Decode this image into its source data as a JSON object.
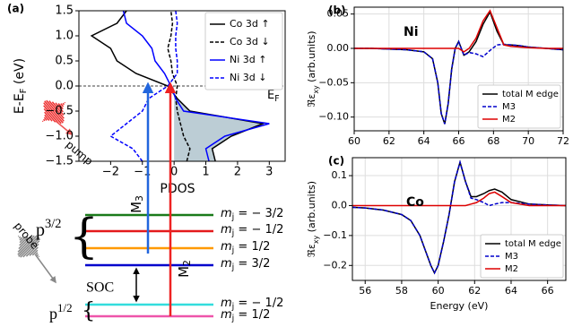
{
  "chart_data": [
    {
      "type": "line",
      "orientation": "horizontal",
      "panel_label": "(a)",
      "xlabel": "PDOS",
      "ylabel": {
        "main": "E-E",
        "sub": "F",
        "unit": " (eV)"
      },
      "y": [
        -1.5,
        -1.25,
        -1,
        -0.75,
        -0.5,
        -0.25,
        0,
        0.25,
        0.5,
        0.75,
        1,
        1.25,
        1.5
      ],
      "series": [
        {
          "name": "Co 3d ↑",
          "color": "#000000",
          "dash": false,
          "fill": "#bccdd5",
          "values": [
            1.3,
            1.2,
            1.8,
            2.8,
            0.5,
            0.1,
            -0.2,
            -1.2,
            -1.8,
            -2.0,
            -2.6,
            -1.8,
            -1.5
          ]
        },
        {
          "name": "Co 3d ↓",
          "color": "#000000",
          "dash": true,
          "values": [
            0.4,
            0.5,
            0.3,
            0.2,
            0.1,
            0.05,
            0.1,
            -0.05,
            -0.1,
            -0.2,
            -0.1,
            -0.05,
            -0.1
          ]
        },
        {
          "name": "Ni 3d ↑",
          "color": "#0000ff",
          "dash": false,
          "values": [
            1.1,
            1.0,
            1.6,
            3.0,
            0.3,
            0.05,
            -0.1,
            -0.3,
            -0.6,
            -0.7,
            -1.0,
            -1.5,
            -1.6
          ]
        },
        {
          "name": "Ni 3d ↓",
          "color": "#0000ff",
          "dash": true,
          "values": [
            -1.0,
            -1.3,
            -2.0,
            -1.5,
            -1.0,
            -0.8,
            -0.2,
            0.1,
            0.1,
            0.05,
            0.05,
            0.1,
            0.05
          ]
        }
      ],
      "xlim": [
        -3,
        3.5
      ],
      "xticks": [
        {
          "value": -2,
          "label": "−2"
        },
        {
          "value": -1,
          "label": "−1"
        },
        0,
        1,
        2,
        3
      ],
      "ylim": [
        -1.5,
        1.5
      ],
      "yticks": [
        {
          "value": -1.5,
          "label": "−1.5"
        },
        {
          "value": -1,
          "label": "−1.0"
        },
        {
          "value": -0.5,
          "label": "−0.5"
        },
        {
          "value": 0,
          "label": "0.0"
        },
        {
          "value": 0.5,
          "label": "0.5"
        },
        {
          "value": 1,
          "label": "1.0"
        },
        1.5
      ],
      "fermi_level": 0,
      "fermi_label": {
        "main": "E",
        "sub": "F"
      },
      "annotation": "pump",
      "legend": "upper right"
    },
    {
      "type": "line",
      "panel_label": "(b)",
      "annotation": "Ni",
      "ylabel": {
        "main": "ℜε",
        "sub": "xy",
        "unit": " (arb.units)"
      },
      "x": [
        60,
        61,
        62,
        63,
        64,
        64.5,
        64.8,
        65.0,
        65.2,
        65.4,
        65.6,
        65.8,
        66.0,
        66.3,
        66.6,
        67.0,
        67.4,
        67.8,
        68.2,
        68.6,
        69.0,
        69.5,
        70,
        71,
        72
      ],
      "series": [
        {
          "name": "total M edge",
          "color": "#000000",
          "dash": false,
          "values": [
            0,
            0,
            -0.001,
            -0.002,
            -0.005,
            -0.015,
            -0.05,
            -0.095,
            -0.11,
            -0.08,
            -0.03,
            0.0,
            0.01,
            -0.01,
            -0.005,
            0.01,
            0.035,
            0.053,
            0.025,
            0.005,
            0.005,
            0.004,
            0.002,
            0,
            -0.002
          ]
        },
        {
          "name": "M3",
          "color": "#0000cc",
          "dash": true,
          "values": [
            0,
            0,
            -0.001,
            -0.002,
            -0.005,
            -0.015,
            -0.05,
            -0.095,
            -0.11,
            -0.08,
            -0.03,
            0.0,
            0.01,
            -0.01,
            -0.006,
            -0.008,
            -0.012,
            -0.003,
            0.005,
            0.006,
            0.005,
            0.004,
            0.002,
            0,
            -0.002
          ]
        },
        {
          "name": "M2",
          "color": "#dd0000",
          "dash": false,
          "values": [
            0,
            0,
            0,
            0,
            0,
            0,
            0,
            0,
            0,
            0,
            0,
            0,
            0,
            -0.005,
            0,
            0.015,
            0.04,
            0.055,
            0.03,
            0.005,
            0.003,
            0.002,
            0.001,
            0,
            0
          ]
        }
      ],
      "xlim": [
        60,
        72
      ],
      "xticks": [
        60,
        62,
        64,
        66,
        68,
        70,
        72
      ],
      "ylim": [
        -0.12,
        0.06
      ],
      "yticks": [
        {
          "value": -0.1,
          "label": "−0.10"
        },
        {
          "value": -0.05,
          "label": "−0.05"
        },
        {
          "value": 0,
          "label": "0.00"
        },
        {
          "value": 0.05,
          "label": "0.05"
        }
      ],
      "grid": true,
      "legend": "lower right"
    },
    {
      "type": "line",
      "panel_label": "(c)",
      "annotation": "Co",
      "xlabel": "Energy (eV)",
      "ylabel": {
        "main": "ℜε",
        "sub": "xy",
        "unit": " (arb.units)"
      },
      "x": [
        55,
        56,
        57,
        58,
        58.5,
        59,
        59.3,
        59.6,
        59.8,
        60,
        60.3,
        60.6,
        60.9,
        61.2,
        61.5,
        61.8,
        62.1,
        62.5,
        62.8,
        63.1,
        63.5,
        64,
        65,
        66,
        67
      ],
      "series": [
        {
          "name": "total M edge",
          "color": "#000000",
          "dash": false,
          "values": [
            -0.005,
            -0.008,
            -0.015,
            -0.03,
            -0.05,
            -0.1,
            -0.15,
            -0.2,
            -0.225,
            -0.2,
            -0.12,
            -0.03,
            0.08,
            0.145,
            0.08,
            0.03,
            0.03,
            0.04,
            0.05,
            0.055,
            0.045,
            0.02,
            0.005,
            0.002,
            0
          ]
        },
        {
          "name": "M3",
          "color": "#0000cc",
          "dash": true,
          "values": [
            -0.005,
            -0.008,
            -0.015,
            -0.03,
            -0.05,
            -0.1,
            -0.15,
            -0.2,
            -0.225,
            -0.2,
            -0.12,
            -0.03,
            0.08,
            0.145,
            0.08,
            0.025,
            0.02,
            0.01,
            0.0,
            0.005,
            0.01,
            0.01,
            0.005,
            0.002,
            0
          ]
        },
        {
          "name": "M2",
          "color": "#dd0000",
          "dash": false,
          "values": [
            0,
            0,
            0,
            0,
            0,
            0,
            0,
            0,
            0,
            0,
            0,
            0,
            0,
            0,
            0,
            0.005,
            0.01,
            0.025,
            0.04,
            0.045,
            0.03,
            0.01,
            0,
            0,
            0
          ]
        }
      ],
      "xlim": [
        55.3,
        67
      ],
      "xticks": [
        56,
        58,
        60,
        62,
        64,
        66
      ],
      "ylim": [
        -0.25,
        0.16
      ],
      "yticks": [
        {
          "value": -0.2,
          "label": "−0.2"
        },
        {
          "value": -0.1,
          "label": "−0.1"
        },
        {
          "value": 0,
          "label": "0.0"
        },
        {
          "value": 0.1,
          "label": "0.1"
        }
      ],
      "grid": true,
      "legend": "lower right"
    }
  ],
  "diagram": {
    "levels": [
      {
        "symbol": "m",
        "sub": "j",
        "text": " = − 3/2",
        "color": "#1a7a1a"
      },
      {
        "symbol": "m",
        "sub": "j",
        "text": " = − 1/2",
        "color": "#e41a1c"
      },
      {
        "symbol": "m",
        "sub": "j",
        "text": " = 1/2",
        "color": "#ff9900"
      },
      {
        "symbol": "m",
        "sub": "j",
        "text": " = 3/2",
        "color": "#0000cc"
      },
      {
        "symbol": "m",
        "sub": "j",
        "text": " = − 1/2",
        "color": "#33dddd"
      },
      {
        "symbol": "m",
        "sub": "j",
        "text": " = 1/2",
        "color": "#ee55aa"
      }
    ],
    "p32": {
      "main": "p",
      "sup": "3/2"
    },
    "p12": {
      "main": "p",
      "sup": "1/2"
    },
    "probe": "probe",
    "soc": "SOC",
    "m3": {
      "main": "M",
      "sub": "3"
    },
    "m2": {
      "main": "M",
      "sub": "2"
    }
  }
}
